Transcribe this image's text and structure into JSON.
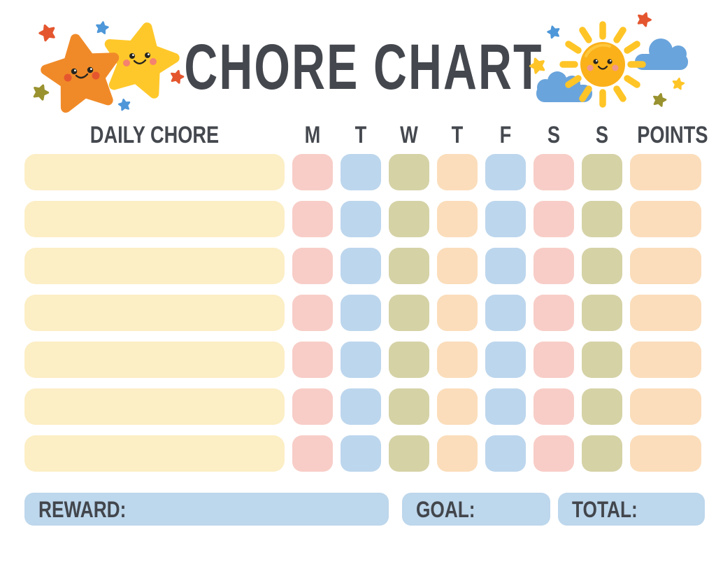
{
  "title": "CHORE CHART",
  "decorations": {
    "left": "twin-smiling-stars",
    "right": "smiling-sun-with-clouds-and-stars"
  },
  "table": {
    "chore_header": "DAILY CHORE",
    "day_headers": [
      "M",
      "T",
      "W",
      "T",
      "F",
      "S",
      "S"
    ],
    "points_header": "POINTS",
    "rows": [
      {
        "chore": "",
        "days": [
          "",
          "",
          "",
          "",
          "",
          "",
          ""
        ],
        "points": ""
      },
      {
        "chore": "",
        "days": [
          "",
          "",
          "",
          "",
          "",
          "",
          ""
        ],
        "points": ""
      },
      {
        "chore": "",
        "days": [
          "",
          "",
          "",
          "",
          "",
          "",
          ""
        ],
        "points": ""
      },
      {
        "chore": "",
        "days": [
          "",
          "",
          "",
          "",
          "",
          "",
          ""
        ],
        "points": ""
      },
      {
        "chore": "",
        "days": [
          "",
          "",
          "",
          "",
          "",
          "",
          ""
        ],
        "points": ""
      },
      {
        "chore": "",
        "days": [
          "",
          "",
          "",
          "",
          "",
          "",
          ""
        ],
        "points": ""
      },
      {
        "chore": "",
        "days": [
          "",
          "",
          "",
          "",
          "",
          "",
          ""
        ],
        "points": ""
      }
    ]
  },
  "footer": {
    "reward_label": "REWARD:",
    "reward_value": "",
    "goal_label": "GOAL:",
    "goal_value": "",
    "total_label": "TOTAL:",
    "total_value": ""
  },
  "colors": {
    "text": "#44484E",
    "chore_bar": "#FCEEC5",
    "day_columns": [
      "#F8CDC7",
      "#BCD6ED",
      "#D5D2A6",
      "#FBDDBB",
      "#BCD6ED",
      "#F8CDC7",
      "#D5D2A6"
    ],
    "points_cell": "#FBDDBB",
    "footer_bar": "#BDD7EC",
    "star_orange": "#F08A28",
    "star_yellow": "#FFC82A",
    "sun_body": "#FBB11A",
    "sun_rays": "#FFC527",
    "cloud_blue": "#6AA4DC",
    "mini_star_red": "#E4562F",
    "mini_star_blue": "#4E97D9",
    "mini_star_olive": "#99922F",
    "mini_star_yellow": "#FFC527"
  }
}
